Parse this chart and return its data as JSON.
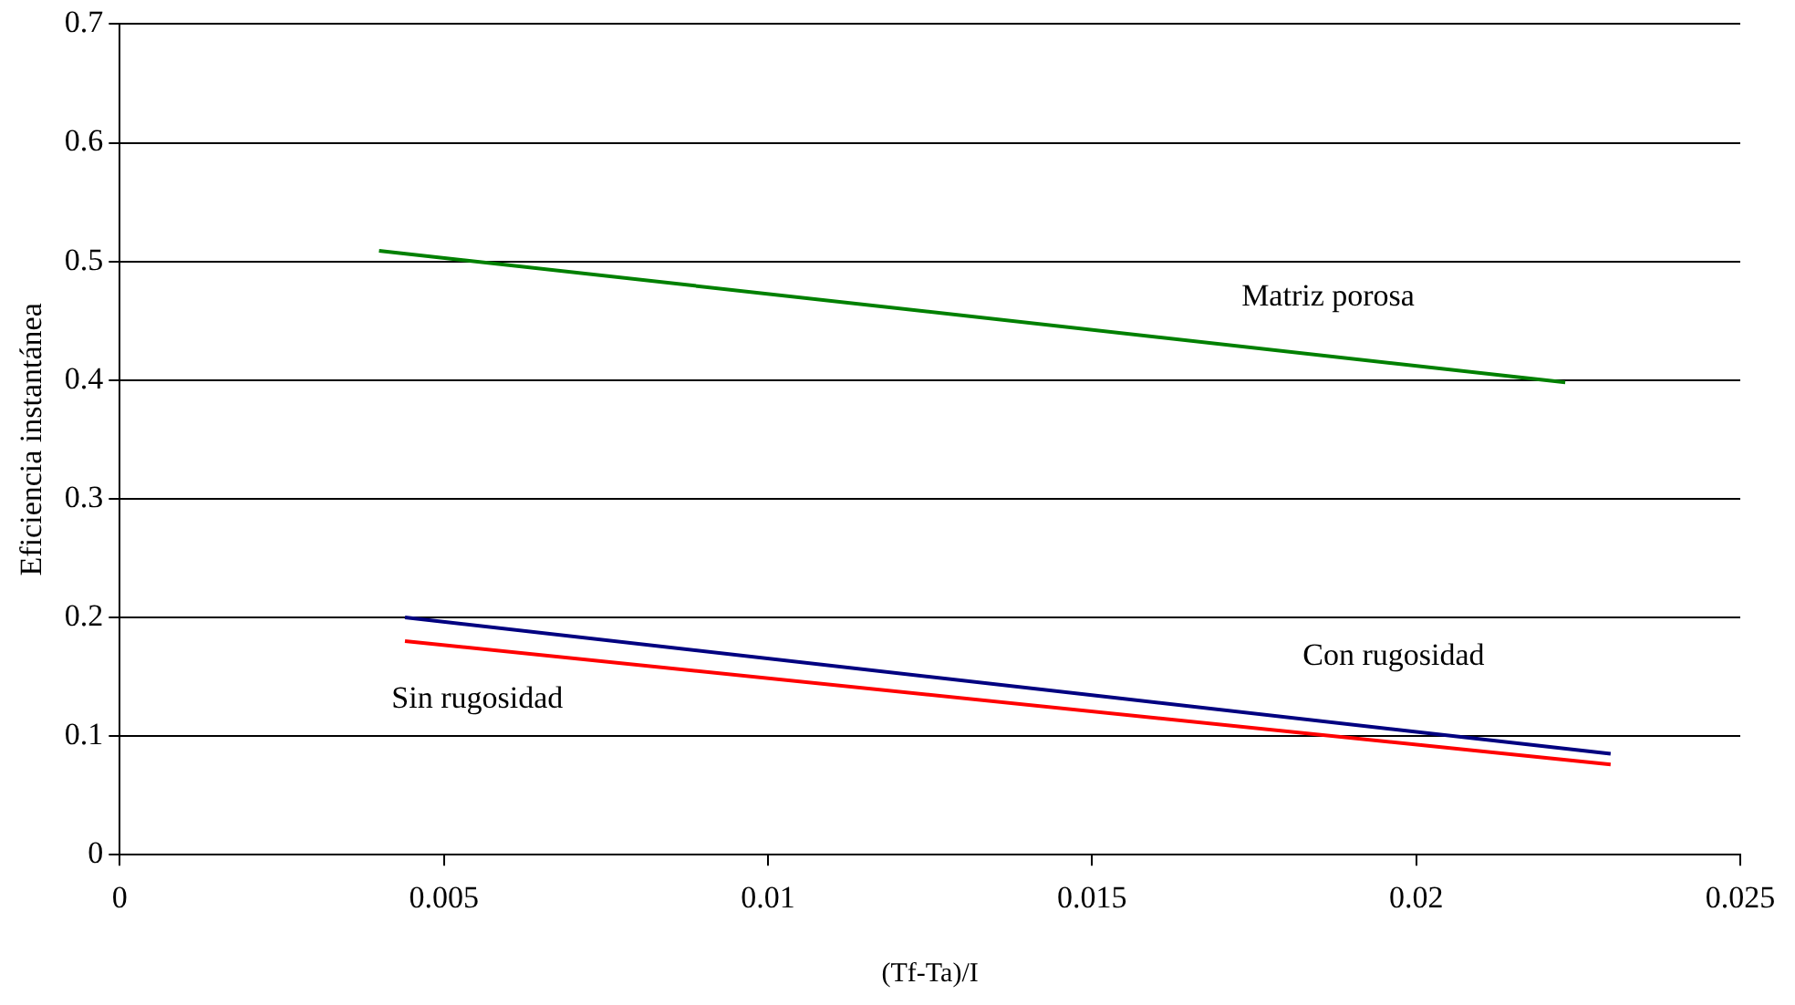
{
  "chart_data": {
    "type": "line",
    "xlabel": "(Tf-Ta)/I",
    "ylabel": "Eficiencia instantánea",
    "xlim": [
      0,
      0.025
    ],
    "xticks": [
      0,
      0.005,
      0.01,
      0.015,
      0.02,
      0.025
    ],
    "ylim": [
      0,
      0.7
    ],
    "yticks": [
      0,
      0.1,
      0.2,
      0.3,
      0.4,
      0.5,
      0.6,
      0.7
    ],
    "grid": "y",
    "marker": "none",
    "legend": false,
    "series": [
      {
        "name": "Matriz porosa",
        "color": "#008000",
        "x": [
          0.004,
          0.0223
        ],
        "values": [
          0.509,
          0.398
        ]
      },
      {
        "name": "Con rugosidad",
        "color": "#000080",
        "x": [
          0.0044,
          0.023
        ],
        "values": [
          0.2,
          0.085
        ]
      },
      {
        "name": "Sin rugosidad",
        "color": "#ff0000",
        "x": [
          0.0044,
          0.023
        ],
        "values": [
          0.18,
          0.076
        ]
      }
    ]
  }
}
